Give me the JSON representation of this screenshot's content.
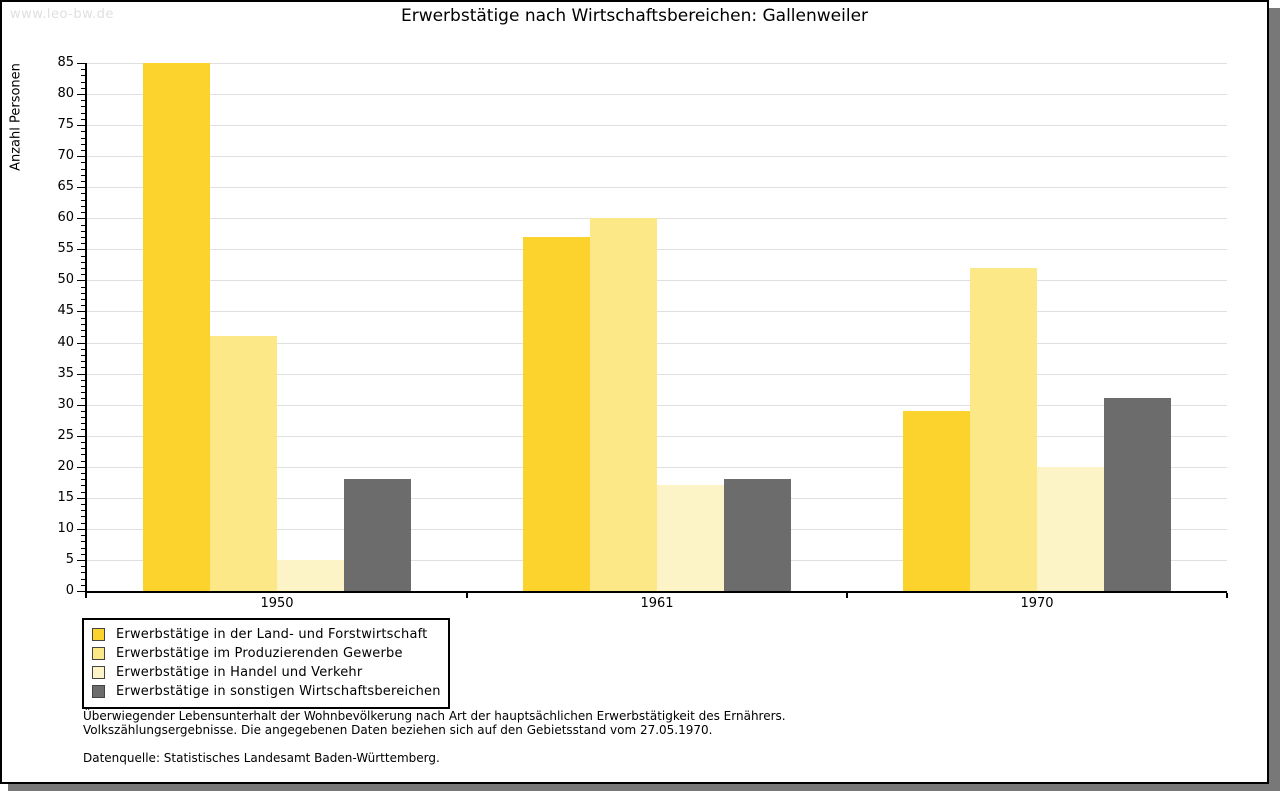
{
  "watermark": "www.leo-bw.de",
  "chart_data": {
    "type": "bar",
    "title": "Erwerbstätige nach Wirtschaftsbereichen: Gallenweiler",
    "xlabel": "",
    "ylabel": "Anzahl Personen",
    "ylim": [
      0,
      85
    ],
    "y_major_step": 5,
    "y_minor_step": 1,
    "grid": true,
    "legend_position": "bottom-left",
    "categories": [
      "1950",
      "1961",
      "1970"
    ],
    "series": [
      {
        "name": "Erwerbstätige in der Land- und Forstwirtschaft",
        "color": "#FCD22C",
        "values": [
          85,
          57,
          29
        ]
      },
      {
        "name": "Erwerbstätige im Produzierenden Gewerbe",
        "color": "#FCE886",
        "values": [
          41,
          60,
          52
        ]
      },
      {
        "name": "Erwerbstätige in Handel und Verkehr",
        "color": "#FCF4C6",
        "values": [
          5,
          17,
          20
        ]
      },
      {
        "name": "Erwerbstätige in sonstigen Wirtschaftsbereichen",
        "color": "#6C6C6C",
        "values": [
          18,
          18,
          31
        ]
      }
    ]
  },
  "footer": {
    "note_line1": "Überwiegender Lebensunterhalt der Wohnbevölkerung nach Art der hauptsächlichen Erwerbstätigkeit des Ernährers.",
    "note_line2": "Volkszählungsergebnisse. Die angegebenen Daten beziehen sich auf den Gebietsstand vom 27.05.1970.",
    "source": "Datenquelle: Statistisches Landesamt Baden-Württemberg."
  },
  "colors": {
    "grid": "#E0E0E0",
    "axis": "#000000",
    "card_shadow": "#787878",
    "watermark": "#E0E0E0"
  }
}
